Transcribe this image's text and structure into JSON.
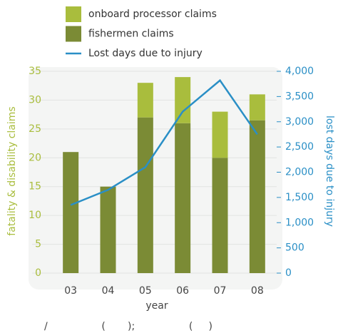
{
  "chart_data": {
    "type": "bar-line",
    "categories": [
      "03",
      "04",
      "05",
      "06",
      "07",
      "08"
    ],
    "series": [
      {
        "name": "onboard processor claims",
        "color": "#a9bd3d",
        "type": "bar",
        "values": [
          0,
          0,
          6,
          8,
          8,
          4.5
        ]
      },
      {
        "name": "fishermen claims",
        "color": "#7b8b35",
        "type": "bar",
        "values": [
          21,
          15,
          27,
          26,
          20,
          26.5
        ]
      },
      {
        "name": "Lost days due to injury",
        "color": "#2a8fc6",
        "type": "line",
        "axis": "y2",
        "values": [
          1350,
          1650,
          2100,
          3200,
          3820,
          2750
        ]
      }
    ],
    "xlabel": "year",
    "ylabel": "fatality & disability claims",
    "y2label": "lost days due to injury",
    "ylim": [
      0,
      35
    ],
    "yticks": [
      0,
      5,
      10,
      15,
      20,
      25,
      30,
      35
    ],
    "y2lim": [
      0,
      4000
    ],
    "y2ticks": [
      0,
      500,
      {
        "value": 1000,
        "label": "1,000"
      },
      {
        "value": 1500,
        "label": "1,500"
      },
      {
        "value": 2000,
        "label": "2,000"
      },
      {
        "value": 2500,
        "label": "2,500"
      },
      {
        "value": 3000,
        "label": "3,000"
      },
      {
        "value": 3500,
        "label": "3,500"
      },
      {
        "value": 4000,
        "label": "4,000"
      }
    ],
    "grid": true,
    "caption": "/                 (       );                 (     )"
  }
}
